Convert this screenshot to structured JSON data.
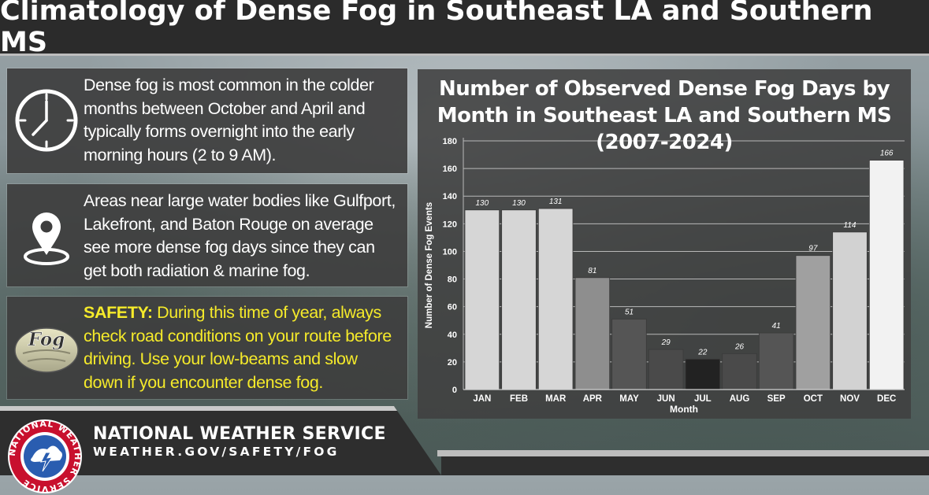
{
  "header": {
    "title": "Climatology of Dense Fog in Southeast LA and Southern MS"
  },
  "panels": [
    {
      "icon": "clock-icon",
      "text": "Dense fog is most common in the colder months between October and April and typically forms overnight into the early morning hours (2 to 9 AM)."
    },
    {
      "icon": "location-pin-icon",
      "text": "Areas near large water bodies like Gulfport, Lakefront, and Baton Rouge on average see more dense fog days since they can get both radiation & marine fog."
    },
    {
      "icon": "fog-icon",
      "icon_text": "Fog",
      "safety_label": "SAFETY:",
      "text": " During this time of year, always check road conditions on your route before driving. Use your low-beams and slow down if you encounter dense fog."
    }
  ],
  "chart_data": {
    "type": "bar",
    "title": "Number of Observed Dense Fog Days by Month in Southeast LA and Southern MS (2007-2024)",
    "xlabel": "Month",
    "ylabel": "Number of Dense Fog Events",
    "categories": [
      "JAN",
      "FEB",
      "MAR",
      "APR",
      "MAY",
      "JUN",
      "JUL",
      "AUG",
      "SEP",
      "OCT",
      "NOV",
      "DEC"
    ],
    "values": [
      130,
      130,
      131,
      81,
      51,
      29,
      22,
      26,
      41,
      97,
      114,
      166
    ],
    "bar_colors": [
      "#d6d6d6",
      "#d6d6d6",
      "#d6d6d6",
      "#8e8e8e",
      "#555555",
      "#4a4a4a",
      "#222222",
      "#4a4a4a",
      "#555555",
      "#a0a0a0",
      "#d2d2d2",
      "#f2f2f2"
    ],
    "ylim": [
      0,
      180
    ],
    "yticks": [
      0,
      20,
      40,
      60,
      80,
      100,
      120,
      140,
      160,
      180
    ],
    "grid": true
  },
  "footer": {
    "logo": "nws-logo-icon",
    "agency": "NATIONAL WEATHER SERVICE",
    "url": "WEATHER.GOV/SAFETY/FOG",
    "logo_ring_text": "NATIONAL WEATHER SERVICE"
  },
  "colors": {
    "title_bar": "#2b2b2b",
    "panel_bg": "#3e3e3e",
    "safety_text": "#f5ea2a"
  }
}
